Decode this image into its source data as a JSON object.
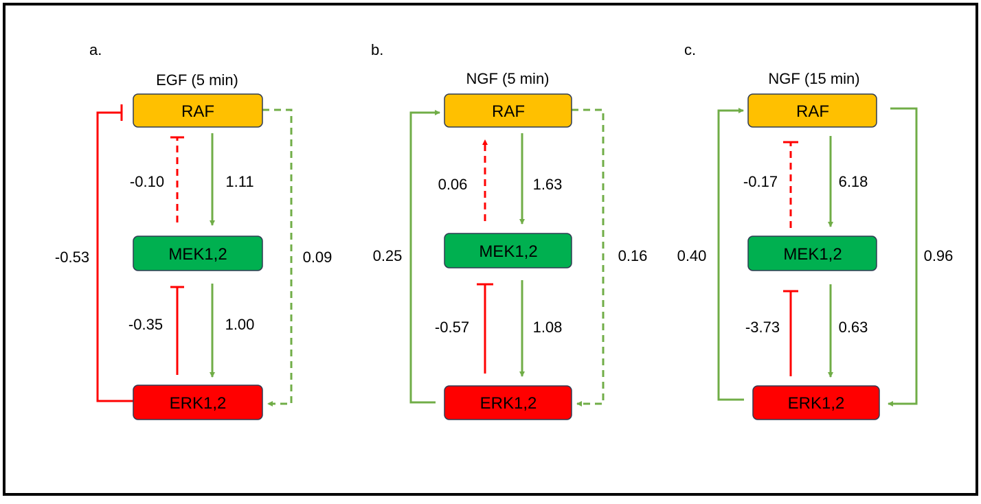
{
  "colors": {
    "raf_fill": "#FFC000",
    "mek_fill": "#00B050",
    "erk_fill": "#FF0000",
    "node_stroke": "#2F3B52",
    "activation_color": "#70AD47",
    "inhibition_color": "#FF0000",
    "frame_color": "#000000",
    "text_color": "#000000"
  },
  "panels": [
    {
      "letter": "a.",
      "title": "EGF (5 min)",
      "nodes": {
        "raf": "RAF",
        "mek": "MEK1,2",
        "erk": "ERK1,2"
      },
      "edges": {
        "raf_to_mek": {
          "label": "1.11",
          "type": "activation",
          "style": "solid"
        },
        "mek_to_raf": {
          "label": "-0.10",
          "type": "inhibition",
          "style": "dashed"
        },
        "mek_to_erk": {
          "label": "1.00",
          "type": "activation",
          "style": "solid"
        },
        "erk_to_mek": {
          "label": "-0.35",
          "type": "inhibition",
          "style": "solid"
        },
        "erk_to_raf": {
          "label": "-0.53",
          "type": "inhibition",
          "style": "solid"
        },
        "raf_to_erk": {
          "label": "0.09",
          "type": "activation",
          "style": "dashed"
        }
      }
    },
    {
      "letter": "b.",
      "title": "NGF (5 min)",
      "nodes": {
        "raf": "RAF",
        "mek": "MEK1,2",
        "erk": "ERK1,2"
      },
      "edges": {
        "raf_to_mek": {
          "label": "1.63",
          "type": "activation",
          "style": "solid"
        },
        "mek_to_raf": {
          "label": "0.06",
          "type": "activation",
          "style": "dashed"
        },
        "mek_to_erk": {
          "label": "1.08",
          "type": "activation",
          "style": "solid"
        },
        "erk_to_mek": {
          "label": "-0.57",
          "type": "inhibition",
          "style": "solid"
        },
        "erk_to_raf": {
          "label": "0.25",
          "type": "activation",
          "style": "solid"
        },
        "raf_to_erk": {
          "label": "0.16",
          "type": "activation",
          "style": "dashed"
        }
      }
    },
    {
      "letter": "c.",
      "title": "NGF (15 min)",
      "nodes": {
        "raf": "RAF",
        "mek": "MEK1,2",
        "erk": "ERK1,2"
      },
      "edges": {
        "raf_to_mek": {
          "label": "6.18",
          "type": "activation",
          "style": "solid"
        },
        "mek_to_raf": {
          "label": "-0.17",
          "type": "inhibition",
          "style": "dashed"
        },
        "mek_to_erk": {
          "label": "0.63",
          "type": "activation",
          "style": "solid"
        },
        "erk_to_mek": {
          "label": "-3.73",
          "type": "inhibition",
          "style": "solid"
        },
        "erk_to_raf": {
          "label": "0.40",
          "type": "activation",
          "style": "solid"
        },
        "raf_to_erk": {
          "label": "0.96",
          "type": "activation",
          "style": "solid"
        }
      }
    }
  ]
}
